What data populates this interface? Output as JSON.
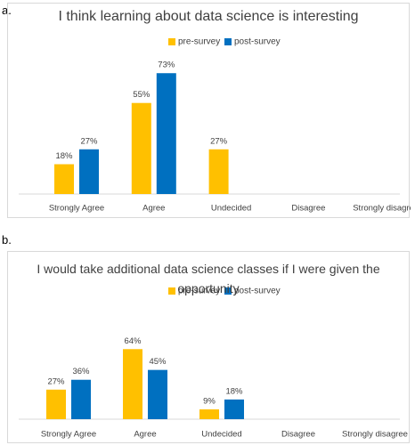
{
  "chart_data": [
    {
      "type": "bar",
      "panel_label": "a.",
      "title": "I think learning about data science is interesting",
      "categories": [
        "Strongly Agree",
        "Agree",
        "Undecided",
        "Disagree",
        "Strongly disagree"
      ],
      "series": [
        {
          "name": "pre-survey",
          "color": "#FFC000",
          "values": [
            18,
            55,
            27,
            null,
            null
          ],
          "value_labels": [
            "18%",
            "55%",
            "27%",
            null,
            null
          ]
        },
        {
          "name": "post-survey",
          "color": "#0070C0",
          "values": [
            27,
            73,
            null,
            null,
            null
          ],
          "value_labels": [
            "27%",
            "73%",
            null,
            null,
            null
          ]
        }
      ]
    },
    {
      "type": "bar",
      "panel_label": "b.",
      "title": "I would take additional data science classes if I were given the opportunity",
      "categories": [
        "Strongly Agree",
        "Agree",
        "Undecided",
        "Disagree",
        "Strongly disagree"
      ],
      "series": [
        {
          "name": "pre-survey",
          "color": "#FFC000",
          "values": [
            27,
            64,
            9,
            null,
            null
          ],
          "value_labels": [
            "27%",
            "64%",
            "9%",
            null,
            null
          ]
        },
        {
          "name": "post-survey",
          "color": "#0070C0",
          "values": [
            36,
            45,
            18,
            null,
            null
          ],
          "value_labels": [
            "36%",
            "45%",
            "18%",
            null,
            null
          ]
        }
      ]
    }
  ]
}
